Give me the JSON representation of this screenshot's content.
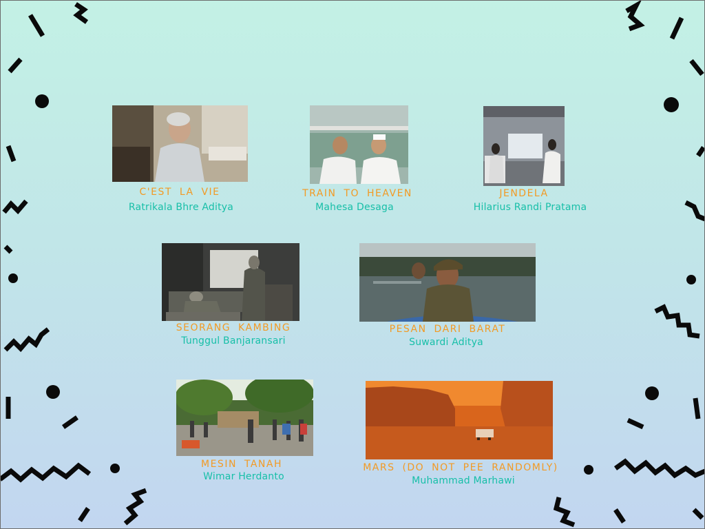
{
  "films": [
    {
      "id": "cest-la-vie",
      "title": "C'EST LA VIE",
      "director": "Ratrikala Bhre Aditya"
    },
    {
      "id": "train-to-heaven",
      "title": "TRAIN TO HEAVEN",
      "director": "Mahesa Desaga"
    },
    {
      "id": "jendela",
      "title": "JENDELA",
      "director": "Hilarius Randi Pratama"
    },
    {
      "id": "seorang-kambing",
      "title": "SEORANG KAMBING",
      "director": "Tunggul Banjaransari"
    },
    {
      "id": "pesan-dari-barat",
      "title": "PESAN DARI BARAT",
      "director": "Suwardi Aditya"
    },
    {
      "id": "mesin-tanah",
      "title": "MESIN TANAH",
      "director": "Wimar Herdanto"
    },
    {
      "id": "mars",
      "title": "MARS (DO NOT PEE RANDOMLY)",
      "director": "Muhammad Marhawi"
    }
  ],
  "colors": {
    "title": "#f29a24",
    "director": "#17bfa8",
    "decoration": "#0a0a0a",
    "background_top": "#c3f1e5",
    "background_bottom": "#c2d6f0"
  }
}
